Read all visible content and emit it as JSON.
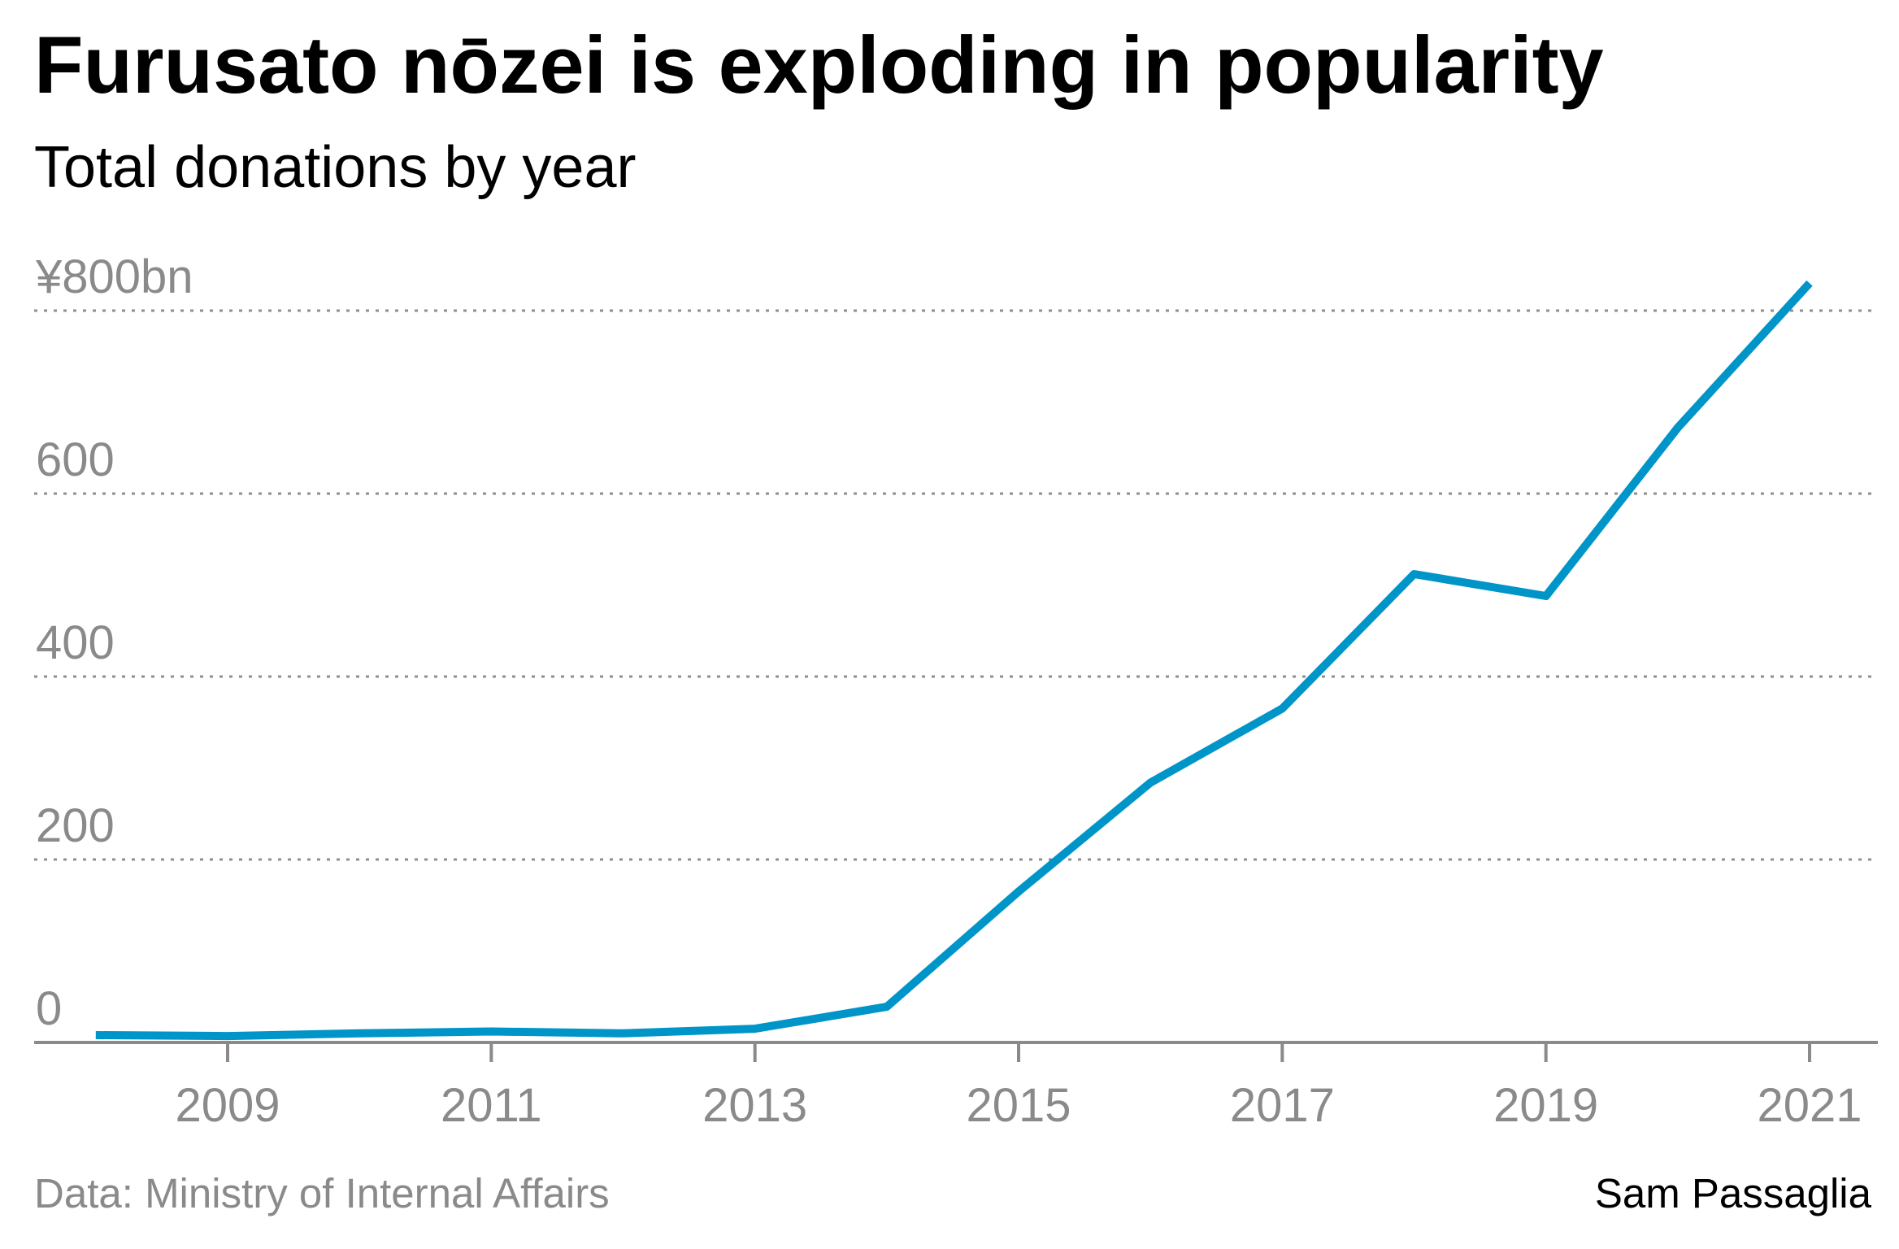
{
  "chart_data": {
    "type": "line",
    "title": "Furusato nōzei is exploding in popularity",
    "subtitle": "Total donations by year",
    "source": "Data: Ministry of Internal Affairs",
    "credit": "Sam Passaglia",
    "xlabel": "",
    "ylabel": "",
    "xlim": [
      2008,
      2021.5
    ],
    "ylim": [
      0,
      800
    ],
    "grid": true,
    "y_ticks": [
      {
        "value": 0,
        "label": "0"
      },
      {
        "value": 200,
        "label": "200"
      },
      {
        "value": 400,
        "label": "400"
      },
      {
        "value": 600,
        "label": "600"
      },
      {
        "value": 800,
        "label": "¥800bn"
      }
    ],
    "x_ticks": [
      {
        "value": 2009,
        "label": "2009"
      },
      {
        "value": 2011,
        "label": "2011"
      },
      {
        "value": 2013,
        "label": "2013"
      },
      {
        "value": 2015,
        "label": "2015"
      },
      {
        "value": 2017,
        "label": "2017"
      },
      {
        "value": 2019,
        "label": "2019"
      },
      {
        "value": 2021,
        "label": "2021"
      }
    ],
    "colors": {
      "line": "#0095c8",
      "axis": "#8a8a8a",
      "grid": "#8f8f8f"
    },
    "series": [
      {
        "x": [
          2008,
          2009,
          2010,
          2011,
          2012,
          2013,
          2014,
          2015,
          2016,
          2017,
          2018,
          2019,
          2020,
          2021
        ],
        "values": [
          8,
          7,
          10,
          12,
          10,
          15,
          39,
          165,
          284,
          365,
          512,
          488,
          672,
          830
        ]
      }
    ]
  }
}
